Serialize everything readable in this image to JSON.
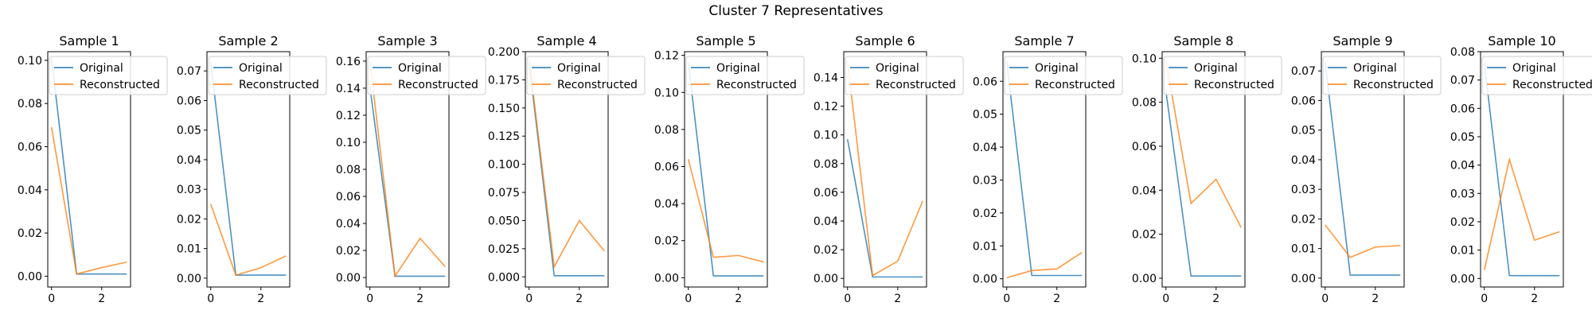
{
  "figure": {
    "title": "Cluster 7 Representatives"
  },
  "colors": {
    "original": "#1f77b4",
    "reconstructed": "#ff7f0e"
  },
  "chart_data": [
    {
      "type": "line",
      "title": "Sample 1",
      "x": [
        0,
        1,
        2,
        3
      ],
      "xticks": [
        0,
        2
      ],
      "ylim": [
        -0.005,
        0.104
      ],
      "yticks": [
        "0.00",
        "0.02",
        "0.04",
        "0.06",
        "0.08",
        "0.10"
      ],
      "legend": "upper-right",
      "series": [
        {
          "name": "Original",
          "values": [
            0.101,
            0.001,
            0.001,
            0.001
          ]
        },
        {
          "name": "Reconstructed",
          "values": [
            0.069,
            0.001,
            0.004,
            0.0065
          ]
        }
      ]
    },
    {
      "type": "line",
      "title": "Sample 2",
      "x": [
        0,
        1,
        2,
        3
      ],
      "xticks": [
        0,
        2
      ],
      "ylim": [
        -0.003,
        0.0765
      ],
      "yticks": [
        "0.00",
        "0.01",
        "0.02",
        "0.03",
        "0.04",
        "0.05",
        "0.06",
        "0.07"
      ],
      "legend": "upper-right",
      "series": [
        {
          "name": "Original",
          "values": [
            0.073,
            0.001,
            0.001,
            0.001
          ]
        },
        {
          "name": "Reconstructed",
          "values": [
            0.025,
            0.001,
            0.0035,
            0.0075
          ]
        }
      ]
    },
    {
      "type": "line",
      "title": "Sample 3",
      "x": [
        0,
        1,
        2,
        3
      ],
      "xticks": [
        0,
        2
      ],
      "ylim": [
        -0.007,
        0.167
      ],
      "yticks": [
        "0.00",
        "0.02",
        "0.04",
        "0.06",
        "0.08",
        "0.10",
        "0.12",
        "0.14",
        "0.16"
      ],
      "legend": "upper-right",
      "series": [
        {
          "name": "Original",
          "values": [
            0.141,
            0.001,
            0.001,
            0.001
          ]
        },
        {
          "name": "Reconstructed",
          "values": [
            0.16,
            0.001,
            0.029,
            0.008
          ]
        }
      ]
    },
    {
      "type": "line",
      "title": "Sample 4",
      "x": [
        0,
        1,
        2,
        3
      ],
      "xticks": [
        0,
        2
      ],
      "ylim": [
        -0.009,
        0.2
      ],
      "yticks": [
        "0.000",
        "0.025",
        "0.050",
        "0.075",
        "0.100",
        "0.125",
        "0.150",
        "0.175",
        "0.200"
      ],
      "legend": "upper-right",
      "series": [
        {
          "name": "Original",
          "values": [
            0.19,
            0.001,
            0.001,
            0.001
          ]
        },
        {
          "name": "Reconstructed",
          "values": [
            0.193,
            0.009,
            0.05,
            0.023
          ]
        }
      ]
    },
    {
      "type": "line",
      "title": "Sample 5",
      "x": [
        0,
        1,
        2,
        3
      ],
      "xticks": [
        0,
        2
      ],
      "ylim": [
        -0.005,
        0.122
      ],
      "yticks": [
        "0.00",
        "0.02",
        "0.04",
        "0.06",
        "0.08",
        "0.10",
        "0.12"
      ],
      "legend": "upper-right",
      "series": [
        {
          "name": "Original",
          "values": [
            0.116,
            0.001,
            0.001,
            0.001
          ]
        },
        {
          "name": "Reconstructed",
          "values": [
            0.064,
            0.011,
            0.012,
            0.0085
          ]
        }
      ]
    },
    {
      "type": "line",
      "title": "Sample 6",
      "x": [
        0,
        1,
        2,
        3
      ],
      "xticks": [
        0,
        2
      ],
      "ylim": [
        -0.006,
        0.158
      ],
      "yticks": [
        "0.00",
        "0.02",
        "0.04",
        "0.06",
        "0.08",
        "0.10",
        "0.12",
        "0.14"
      ],
      "legend": "upper-right",
      "series": [
        {
          "name": "Original",
          "values": [
            0.097,
            0.001,
            0.001,
            0.001
          ]
        },
        {
          "name": "Reconstructed",
          "values": [
            0.151,
            0.002,
            0.012,
            0.054
          ]
        }
      ]
    },
    {
      "type": "line",
      "title": "Sample 7",
      "x": [
        0,
        1,
        2,
        3
      ],
      "xticks": [
        0,
        2
      ],
      "ylim": [
        -0.0025,
        0.069
      ],
      "yticks": [
        "0.00",
        "0.01",
        "0.02",
        "0.03",
        "0.04",
        "0.05",
        "0.06"
      ],
      "legend": "upper-right",
      "series": [
        {
          "name": "Original",
          "values": [
            0.066,
            0.001,
            0.001,
            0.001
          ]
        },
        {
          "name": "Reconstructed",
          "values": [
            0.0003,
            0.0025,
            0.003,
            0.008
          ]
        }
      ]
    },
    {
      "type": "line",
      "title": "Sample 8",
      "x": [
        0,
        1,
        2,
        3
      ],
      "xticks": [
        0,
        2
      ],
      "ylim": [
        -0.004,
        0.103
      ],
      "yticks": [
        "0.00",
        "0.02",
        "0.04",
        "0.06",
        "0.08",
        "0.10"
      ],
      "legend": "upper-right",
      "series": [
        {
          "name": "Original",
          "values": [
            0.085,
            0.001,
            0.001,
            0.001
          ]
        },
        {
          "name": "Reconstructed",
          "values": [
            0.099,
            0.034,
            0.045,
            0.023
          ]
        }
      ]
    },
    {
      "type": "line",
      "title": "Sample 9",
      "x": [
        0,
        1,
        2,
        3
      ],
      "xticks": [
        0,
        2
      ],
      "ylim": [
        -0.003,
        0.0765
      ],
      "yticks": [
        "0.00",
        "0.01",
        "0.02",
        "0.03",
        "0.04",
        "0.05",
        "0.06",
        "0.07"
      ],
      "legend": "upper-right",
      "series": [
        {
          "name": "Original",
          "values": [
            0.073,
            0.001,
            0.001,
            0.001
          ]
        },
        {
          "name": "Reconstructed",
          "values": [
            0.018,
            0.007,
            0.0105,
            0.011
          ]
        }
      ]
    },
    {
      "type": "line",
      "title": "Sample 10",
      "x": [
        0,
        1,
        2,
        3
      ],
      "xticks": [
        0,
        2
      ],
      "ylim": [
        -0.003,
        0.08
      ],
      "yticks": [
        "0.00",
        "0.01",
        "0.02",
        "0.03",
        "0.04",
        "0.05",
        "0.06",
        "0.07",
        "0.08"
      ],
      "legend": "upper-right",
      "series": [
        {
          "name": "Original",
          "values": [
            0.076,
            0.001,
            0.001,
            0.001
          ]
        },
        {
          "name": "Reconstructed",
          "values": [
            0.003,
            0.042,
            0.0135,
            0.0165
          ]
        }
      ]
    }
  ]
}
